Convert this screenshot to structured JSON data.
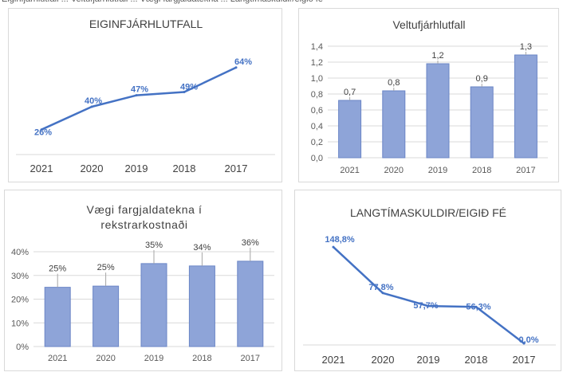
{
  "top_strip_text": "Eiginfjárhlutfall ... Veltufjárhlutfall ... Vægi fargjaldatekna ... Langtímaskuldir/eigið fé",
  "colors": {
    "line": "#4472c4",
    "bar_fill": "#8ea4d8",
    "bar_stroke": "#6b86c6",
    "grid": "#d9d9d9"
  },
  "chart_data": [
    {
      "type": "line",
      "title": "EIGINFJÁRHLUTFALL",
      "categories": [
        "2021",
        "2020",
        "2019",
        "2018",
        "2017"
      ],
      "values": [
        26,
        40,
        47,
        49,
        64
      ],
      "labels": [
        "26%",
        "40%",
        "47%",
        "49%",
        "64%"
      ],
      "ylim": [
        0,
        100
      ],
      "grid": false
    },
    {
      "type": "bar",
      "title": "Veltufjárhlutfall",
      "categories": [
        "2021",
        "2020",
        "2019",
        "2018",
        "2017"
      ],
      "values": [
        0.72,
        0.84,
        1.18,
        0.89,
        1.29
      ],
      "labels": [
        "0,7",
        "0,8",
        "1,2",
        "0,9",
        "1,3"
      ],
      "ylim": [
        0,
        1.4
      ],
      "yticks": [
        "0,0",
        "0,2",
        "0,4",
        "0,6",
        "0,8",
        "1,0",
        "1,2",
        "1,4"
      ],
      "grid": true
    },
    {
      "type": "bar",
      "title_lines": [
        "Vægi fargjaldatekna í",
        "rekstrarkostnaði"
      ],
      "categories": [
        "2021",
        "2020",
        "2019",
        "2018",
        "2017"
      ],
      "values": [
        25,
        25.5,
        35,
        34,
        36
      ],
      "labels": [
        "25%",
        "25%",
        "35%",
        "34%",
        "36%"
      ],
      "ylim": [
        0,
        40
      ],
      "yticks": [
        "0%",
        "10%",
        "20%",
        "30%",
        "40%"
      ],
      "grid": true
    },
    {
      "type": "line",
      "title": "LANGTÍMASKULDIR/EIGIÐ FÉ",
      "categories": [
        "2021",
        "2020",
        "2019",
        "2018",
        "2017"
      ],
      "values": [
        148.8,
        77.8,
        57.7,
        56.3,
        0.0
      ],
      "labels": [
        "148,8%",
        "77,8%",
        "57,7%",
        "56,3%",
        "0,0%"
      ],
      "ylim": [
        0,
        160
      ],
      "grid": false
    }
  ]
}
